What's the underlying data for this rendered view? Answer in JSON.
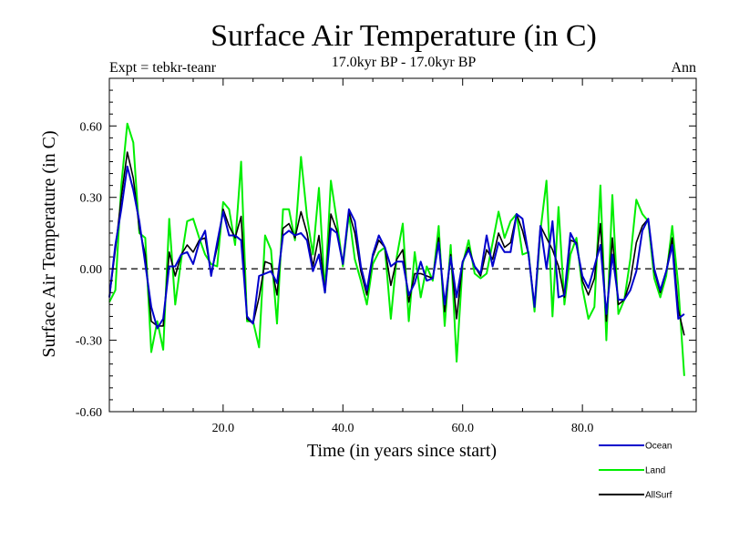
{
  "chart_data": {
    "type": "line",
    "title": "Surface Air Temperature (in C)",
    "subtitle": "17.0kyr BP - 17.0kyr BP",
    "experiment": "Expt = tebkr-teanr",
    "season": "Ann",
    "xlabel": "Time (in years since start)",
    "ylabel": "Surface Air Temperature (in C)",
    "xlim": [
      1,
      99
    ],
    "ylim": [
      -0.6,
      0.8
    ],
    "xticks": [
      20,
      40,
      60,
      80
    ],
    "xtick_labels": [
      "20.0",
      "40.0",
      "60.0",
      "80.0"
    ],
    "yticks": [
      -0.6,
      -0.3,
      0.0,
      0.3,
      0.6
    ],
    "ytick_labels": [
      "-0.60",
      "-0.30",
      "0.00",
      "0.30",
      "0.60"
    ],
    "zero_line": "dashed",
    "series": [
      {
        "name": "Ocean",
        "color": "#0000cc",
        "values": [
          -0.12,
          0.1,
          0.25,
          0.43,
          0.33,
          0.2,
          0.02,
          -0.16,
          -0.25,
          -0.21,
          0.01,
          0.01,
          0.06,
          0.07,
          0.02,
          0.11,
          0.16,
          -0.03,
          0.11,
          0.24,
          0.14,
          0.14,
          0.12,
          -0.2,
          -0.23,
          -0.03,
          -0.02,
          -0.01,
          -0.06,
          0.14,
          0.16,
          0.14,
          0.15,
          0.12,
          -0.01,
          0.06,
          -0.1,
          0.17,
          0.15,
          0.02,
          0.25,
          0.2,
          0.01,
          -0.09,
          0.06,
          0.14,
          0.09,
          0.01,
          0.03,
          0.03,
          -0.11,
          -0.06,
          0.03,
          -0.05,
          -0.04,
          0.11,
          -0.15,
          0.05,
          -0.12,
          0.03,
          0.08,
          0.01,
          -0.02,
          0.14,
          0.01,
          0.11,
          0.07,
          0.07,
          0.23,
          0.21,
          0.06,
          -0.16,
          0.18,
          0.0,
          0.2,
          -0.12,
          -0.11,
          0.15,
          0.1,
          -0.03,
          -0.08,
          0.01,
          0.1,
          -0.19,
          0.06,
          -0.13,
          -0.13,
          -0.09,
          -0.01,
          0.16,
          0.21,
          0.0,
          -0.09,
          -0.01,
          0.1,
          -0.21,
          -0.19
        ]
      },
      {
        "name": "Land",
        "color": "#00ee00",
        "values": [
          -0.14,
          -0.09,
          0.35,
          0.61,
          0.53,
          0.15,
          0.13,
          -0.35,
          -0.22,
          -0.34,
          0.21,
          -0.15,
          0.04,
          0.2,
          0.21,
          0.13,
          0.06,
          0.02,
          0.01,
          0.28,
          0.25,
          0.1,
          0.45,
          -0.22,
          -0.22,
          -0.33,
          0.14,
          0.08,
          -0.23,
          0.25,
          0.25,
          0.12,
          0.47,
          0.22,
          0.06,
          0.34,
          -0.1,
          0.37,
          0.2,
          0.01,
          0.23,
          0.04,
          -0.05,
          -0.15,
          0.02,
          0.07,
          0.09,
          -0.21,
          0.05,
          0.19,
          -0.22,
          0.07,
          -0.12,
          0.01,
          -0.05,
          0.18,
          -0.24,
          0.1,
          -0.39,
          0.02,
          0.12,
          -0.02,
          -0.04,
          -0.02,
          0.11,
          0.24,
          0.13,
          0.2,
          0.23,
          0.06,
          0.07,
          -0.18,
          0.16,
          0.37,
          -0.2,
          0.26,
          -0.15,
          0.06,
          0.13,
          -0.08,
          -0.21,
          -0.16,
          0.35,
          -0.3,
          0.31,
          -0.19,
          -0.13,
          0.04,
          0.29,
          0.23,
          0.2,
          -0.04,
          -0.12,
          -0.03,
          0.18,
          -0.07,
          -0.45
        ]
      },
      {
        "name": "AllSurf",
        "color": "#000000",
        "values": [
          -0.12,
          0.08,
          0.3,
          0.49,
          0.38,
          0.17,
          0.06,
          -0.22,
          -0.24,
          -0.24,
          0.07,
          -0.03,
          0.06,
          0.1,
          0.07,
          0.12,
          0.13,
          -0.02,
          0.09,
          0.25,
          0.18,
          0.13,
          0.22,
          -0.21,
          -0.23,
          -0.12,
          0.03,
          0.02,
          -0.11,
          0.17,
          0.19,
          0.13,
          0.24,
          0.15,
          0.01,
          0.14,
          -0.1,
          0.23,
          0.16,
          0.02,
          0.24,
          0.15,
          -0.01,
          -0.11,
          0.05,
          0.12,
          0.09,
          -0.07,
          0.04,
          0.08,
          -0.14,
          -0.02,
          -0.02,
          -0.03,
          -0.04,
          0.13,
          -0.18,
          0.06,
          -0.21,
          0.03,
          0.09,
          0.01,
          -0.03,
          0.08,
          0.04,
          0.15,
          0.09,
          0.11,
          0.23,
          0.16,
          0.06,
          -0.16,
          0.18,
          0.13,
          0.08,
          0.01,
          -0.12,
          0.12,
          0.11,
          -0.05,
          -0.11,
          -0.04,
          0.19,
          -0.22,
          0.13,
          -0.15,
          -0.13,
          -0.05,
          0.11,
          0.18,
          0.21,
          -0.01,
          -0.1,
          -0.01,
          0.13,
          -0.17,
          -0.28
        ]
      }
    ]
  }
}
